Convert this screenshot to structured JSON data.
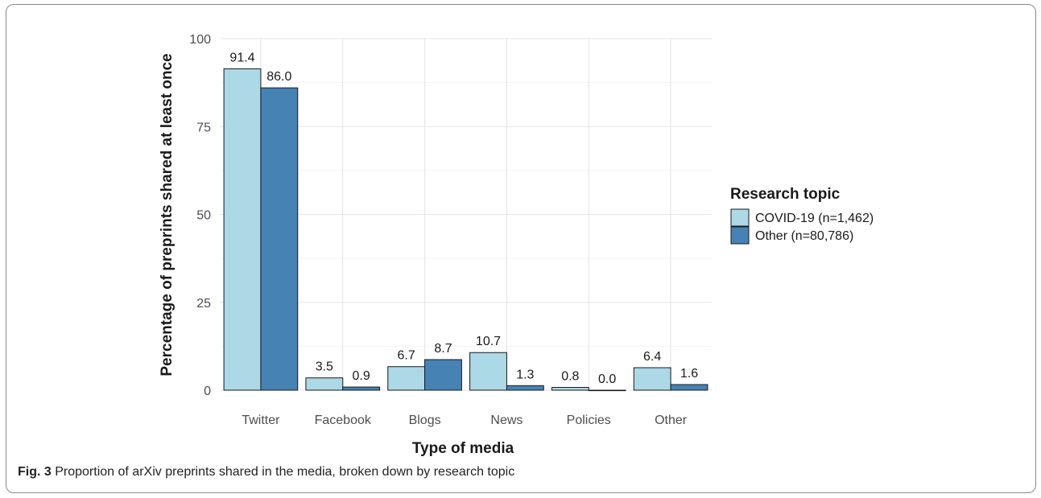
{
  "figure": {
    "caption_label": "Fig. 3",
    "caption_text": "Proportion of arXiv preprints shared in the media, broken down by research topic"
  },
  "chart_data": {
    "type": "bar",
    "title": "",
    "xlabel": "Type of media",
    "ylabel": "Percentage of preprints shared at least once",
    "categories": [
      "Twitter",
      "Facebook",
      "Blogs",
      "News",
      "Policies",
      "Other"
    ],
    "series": [
      {
        "name": "COVID-19 (n=1,462)",
        "color": "#add8e6",
        "values": [
          91.4,
          3.5,
          6.7,
          10.7,
          0.8,
          6.4
        ],
        "labels": [
          "91.4",
          "3.5",
          "6.7",
          "10.7",
          "0.8",
          "6.4"
        ]
      },
      {
        "name": "Other (n=80,786)",
        "color": "#4682b4",
        "values": [
          86.0,
          0.9,
          8.7,
          1.3,
          0.0,
          1.6
        ],
        "labels": [
          "86.0",
          "0.9",
          "8.7",
          "1.3",
          "0.0",
          "1.6"
        ]
      }
    ],
    "ylim": [
      0,
      100
    ],
    "yticks": [
      0,
      25,
      50,
      75,
      100
    ],
    "grid": true,
    "legend_title": "Research topic",
    "legend_position": "right"
  }
}
